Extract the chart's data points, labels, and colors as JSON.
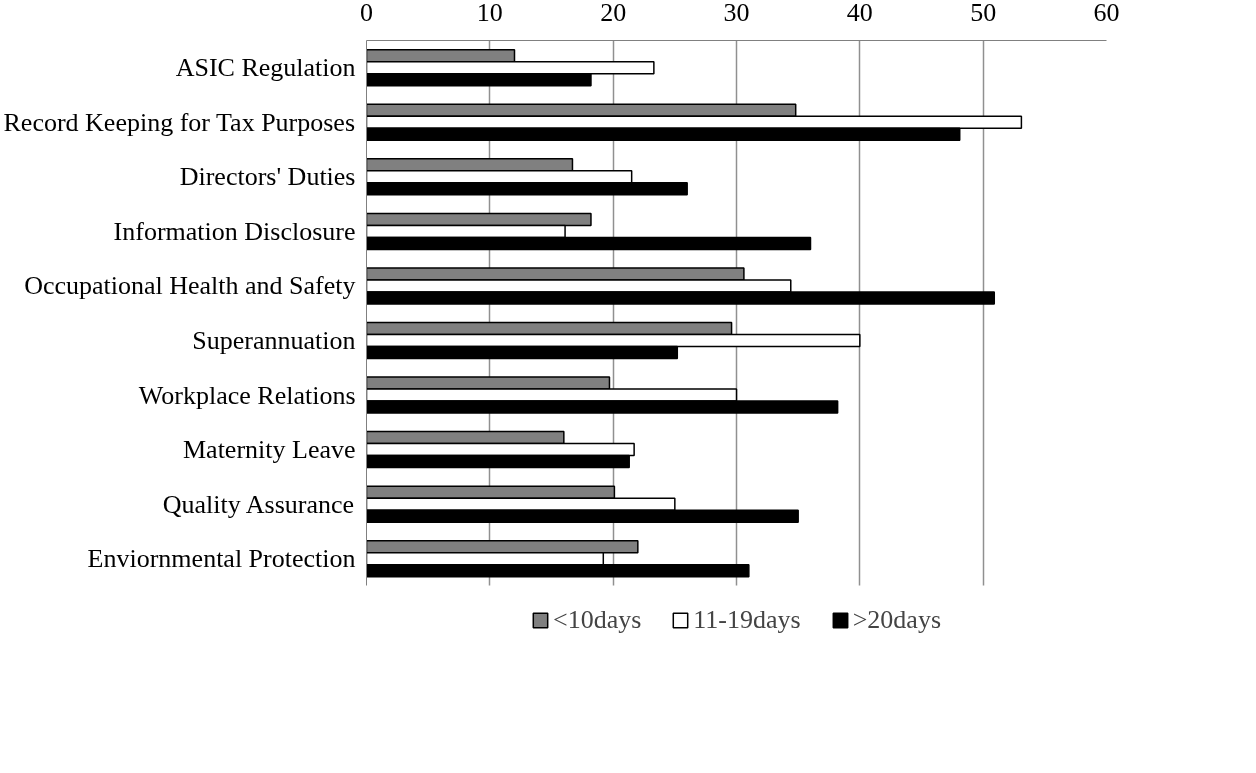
{
  "chart_data": {
    "type": "bar",
    "orientation": "horizontal",
    "categories": [
      "ASIC Regulation",
      "Record Keeping for Tax Purposes",
      "Directors' Duties",
      "Information Disclosure",
      "Occupational Health and Safety",
      "Superannuation",
      "Workplace Relations",
      "Maternity Leave",
      "Quality Assurance",
      "Enviornmental Protection"
    ],
    "series": [
      {
        "name": "<10days",
        "color": "#808080",
        "values": [
          12.0,
          34.8,
          16.7,
          18.2,
          30.6,
          29.6,
          19.7,
          16.0,
          20.1,
          22.0
        ]
      },
      {
        "name": "11-19days",
        "color": "#ffffff",
        "values": [
          23.3,
          53.1,
          21.5,
          16.1,
          34.4,
          40.0,
          30.0,
          21.7,
          25.0,
          19.2
        ]
      },
      {
        "name": ">20days",
        "color": "#000000",
        "values": [
          18.2,
          48.1,
          26.0,
          36.0,
          50.9,
          25.2,
          38.2,
          21.3,
          35.0,
          31.0
        ]
      }
    ],
    "xlim": [
      0,
      60
    ],
    "xticks": [
      0,
      10,
      20,
      30,
      40,
      50,
      60
    ],
    "grid": "x",
    "legend": "bottom"
  }
}
